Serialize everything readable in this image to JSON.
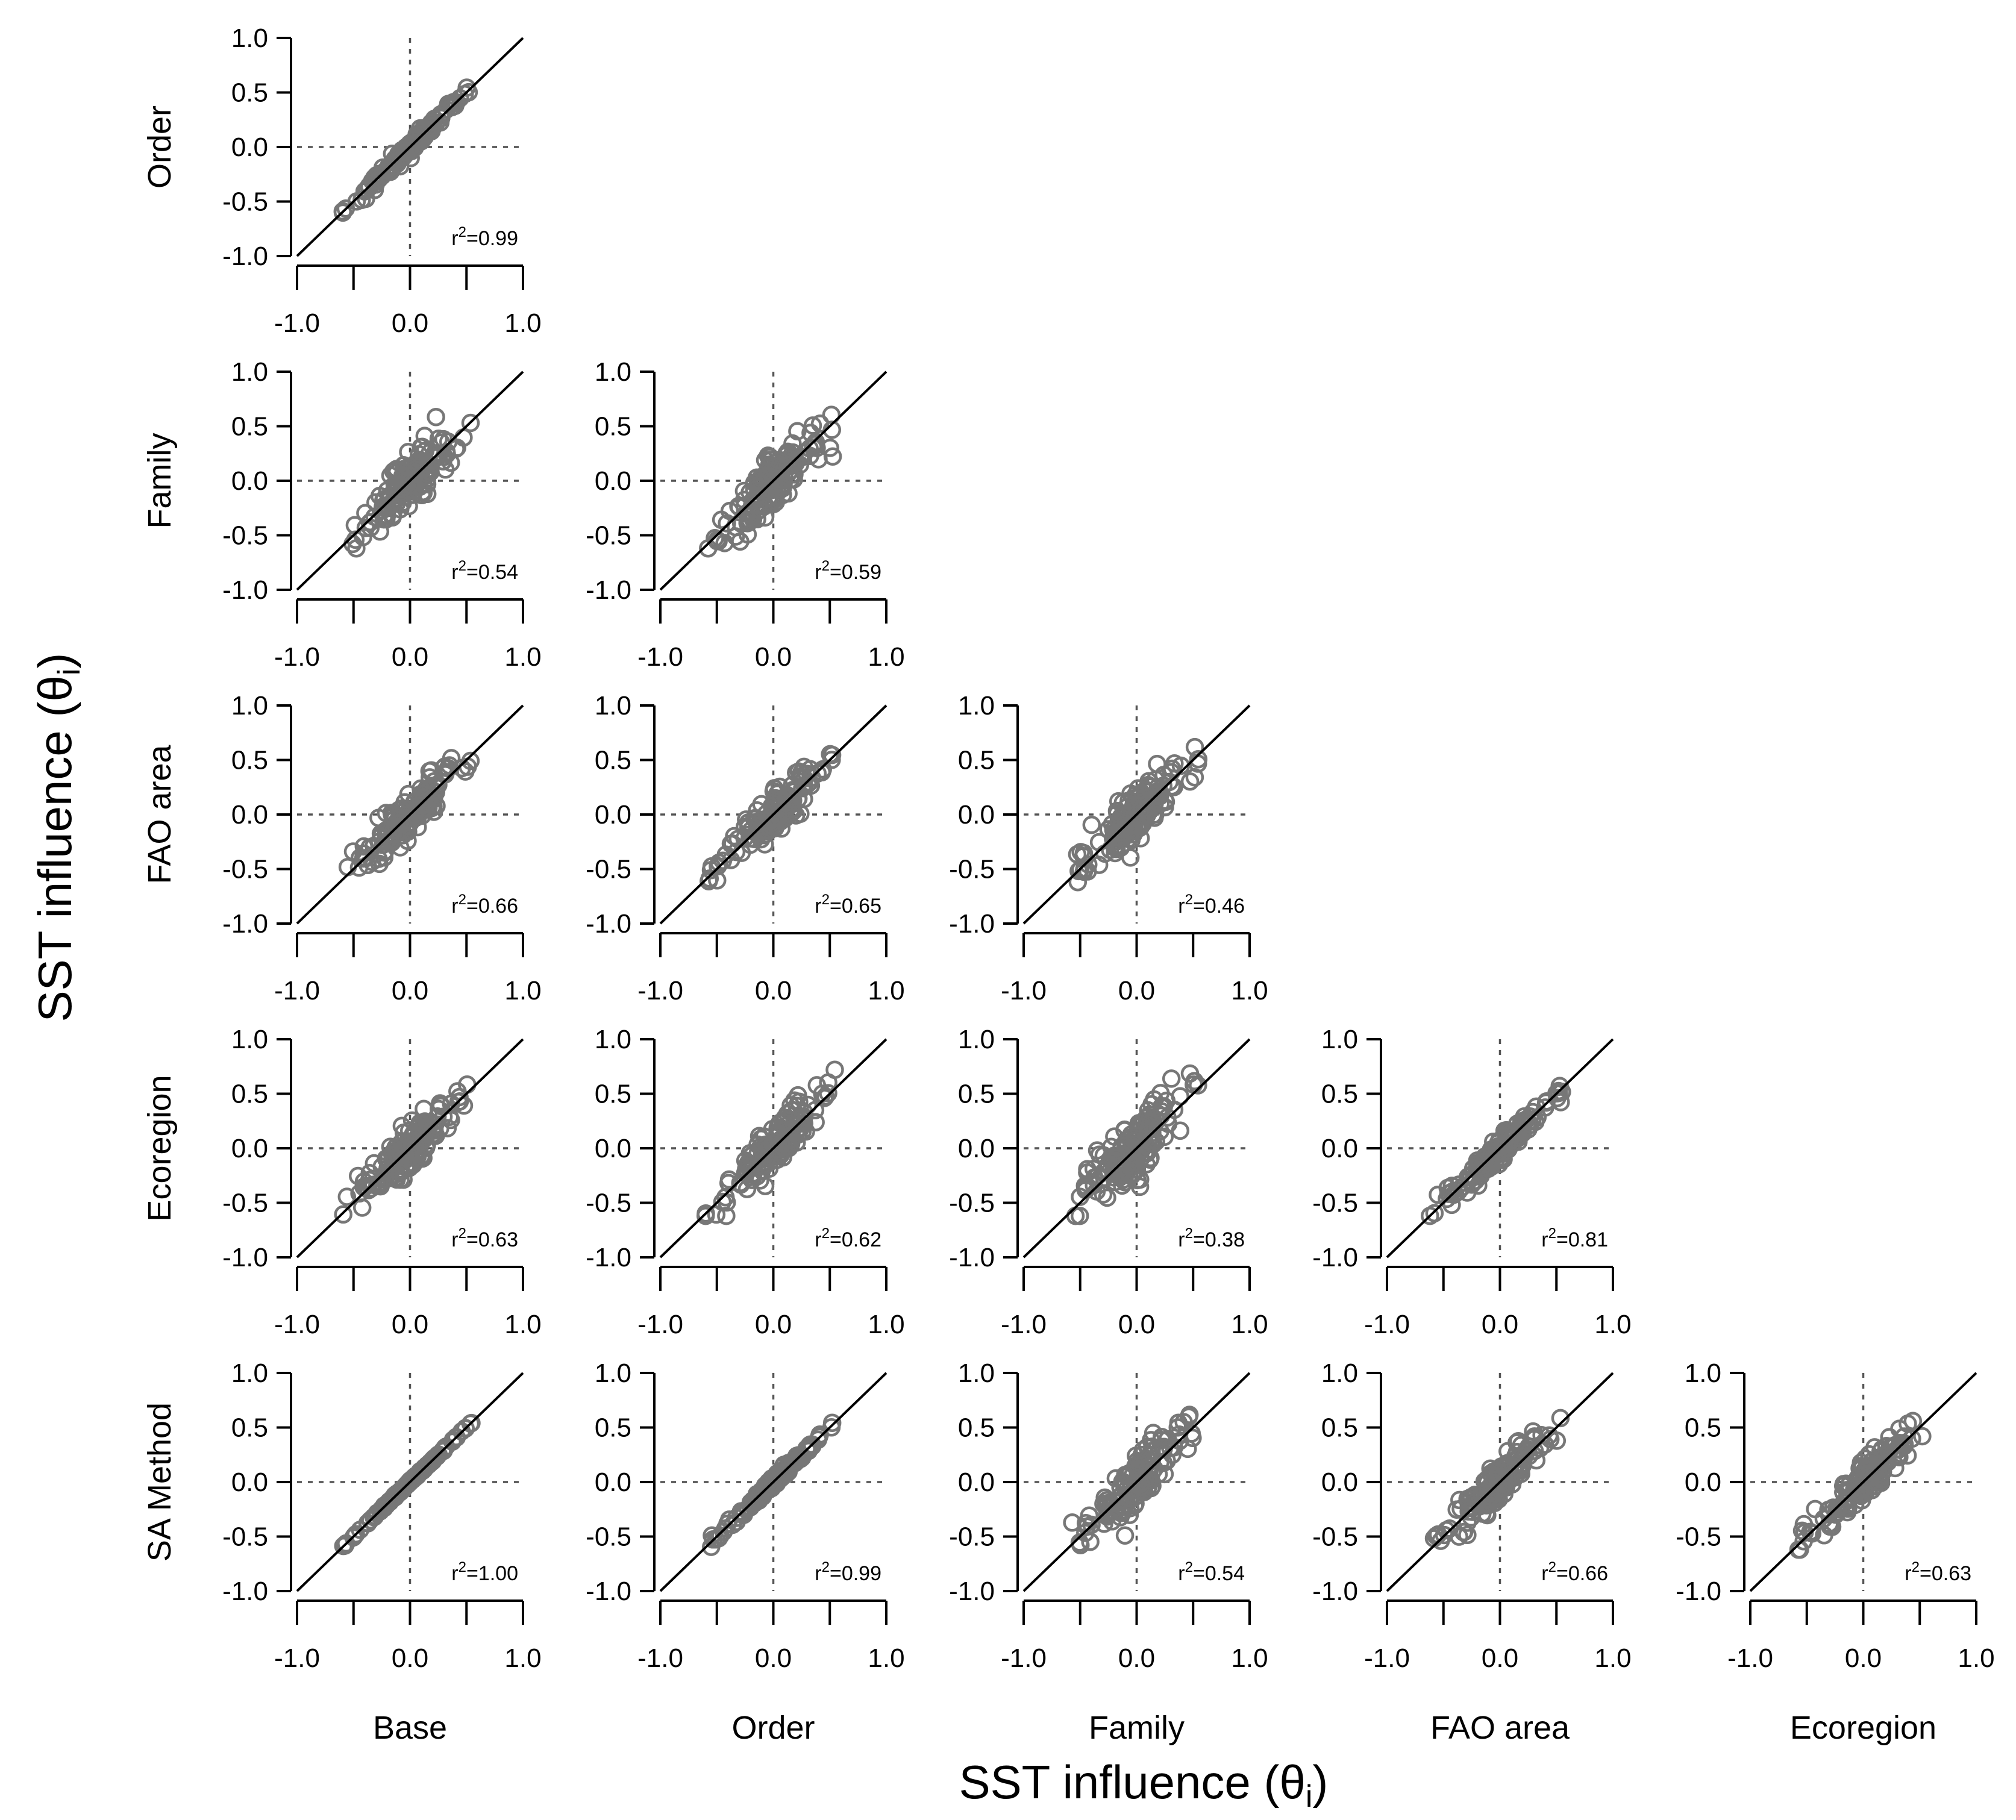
{
  "labels": {
    "xlabel_main": "SST influence (θ",
    "ylabel_main": "SST influence (θ",
    "subscript": "i",
    "close_paren": ")",
    "r2_prefix": "r",
    "r2_power": "2"
  },
  "row_models": [
    "Order",
    "Family",
    "FAO area",
    "Ecoregion",
    "SA Method"
  ],
  "col_models": [
    "Base",
    "Order",
    "Family",
    "FAO area",
    "Ecoregion"
  ],
  "ticks": {
    "values": [
      -1.0,
      -0.5,
      0.0,
      0.5,
      1.0
    ],
    "x_labels": [
      "-1.0",
      "0.0",
      "1.0"
    ],
    "y_labels": [
      "1.0",
      "0.5",
      "0.0",
      "-0.5",
      "-1.0"
    ]
  },
  "colors": {
    "points": "#777777",
    "identity_line": "#000000",
    "zero_line": "#555555",
    "axis": "#000000"
  },
  "chart_data": {
    "type": "scatter",
    "layout": "lower-triangular pairwise matrix",
    "xlabel": "SST influence (θi)",
    "ylabel": "SST influence (θi)",
    "xlim": [
      -1.0,
      1.0
    ],
    "ylim": [
      -1.0,
      1.0
    ],
    "reference_lines": [
      "y = x",
      "x = 0",
      "y = 0"
    ],
    "grid": false,
    "panels": [
      {
        "row": 0,
        "col": 0,
        "x_model": "Base",
        "y_model": "Order",
        "r2": "r²=0.99",
        "r2_value": "0.99",
        "spread": 0.03
      },
      {
        "row": 1,
        "col": 0,
        "x_model": "Base",
        "y_model": "Family",
        "r2": "r²=0.54",
        "r2_value": "0.54",
        "spread": 0.13
      },
      {
        "row": 1,
        "col": 1,
        "x_model": "Order",
        "y_model": "Family",
        "r2": "r²=0.59",
        "r2_value": "0.59",
        "spread": 0.12
      },
      {
        "row": 2,
        "col": 0,
        "x_model": "Base",
        "y_model": "FAO area",
        "r2": "r²=0.66",
        "r2_value": "0.66",
        "spread": 0.09
      },
      {
        "row": 2,
        "col": 1,
        "x_model": "Order",
        "y_model": "FAO area",
        "r2": "r²=0.65",
        "r2_value": "0.65",
        "spread": 0.09
      },
      {
        "row": 2,
        "col": 2,
        "x_model": "Family",
        "y_model": "FAO area",
        "r2": "r²=0.46",
        "r2_value": "0.46",
        "spread": 0.12
      },
      {
        "row": 3,
        "col": 0,
        "x_model": "Base",
        "y_model": "Ecoregion",
        "r2": "r²=0.63",
        "r2_value": "0.63",
        "spread": 0.1
      },
      {
        "row": 3,
        "col": 1,
        "x_model": "Order",
        "y_model": "Ecoregion",
        "r2": "r²=0.62",
        "r2_value": "0.62",
        "spread": 0.1
      },
      {
        "row": 3,
        "col": 2,
        "x_model": "Family",
        "y_model": "Ecoregion",
        "r2": "r²=0.38",
        "r2_value": "0.38",
        "spread": 0.14
      },
      {
        "row": 3,
        "col": 3,
        "x_model": "FAO area",
        "y_model": "Ecoregion",
        "r2": "r²=0.81",
        "r2_value": "0.81",
        "spread": 0.06
      },
      {
        "row": 4,
        "col": 0,
        "x_model": "Base",
        "y_model": "SA Method",
        "r2": "r²=1.00",
        "r2_value": "1.00",
        "spread": 0.005
      },
      {
        "row": 4,
        "col": 1,
        "x_model": "Order",
        "y_model": "SA Method",
        "r2": "r²=0.99",
        "r2_value": "0.99",
        "spread": 0.025
      },
      {
        "row": 4,
        "col": 2,
        "x_model": "Family",
        "y_model": "SA Method",
        "r2": "r²=0.54",
        "r2_value": "0.54",
        "spread": 0.12
      },
      {
        "row": 4,
        "col": 3,
        "x_model": "FAO area",
        "y_model": "SA Method",
        "r2": "r²=0.66",
        "r2_value": "0.66",
        "spread": 0.09
      },
      {
        "row": 4,
        "col": 4,
        "x_model": "Ecoregion",
        "y_model": "SA Method",
        "r2": "r²=0.63",
        "r2_value": "0.63",
        "spread": 0.09
      }
    ]
  }
}
